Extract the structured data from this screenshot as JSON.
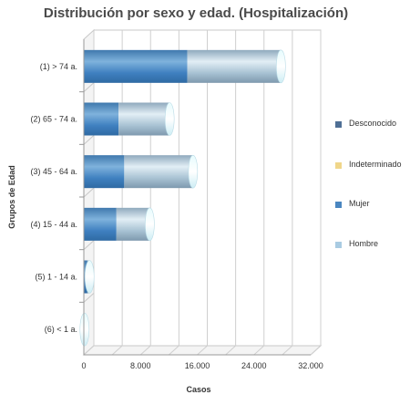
{
  "chart_data": {
    "type": "bar",
    "orientation": "horizontal",
    "stacked": true,
    "style": "3d-cylinder",
    "title": "Distribución por sexo y edad. (Hospitalización)",
    "xlabel": "Casos",
    "ylabel": "Grupos de Edad",
    "categories": [
      "(1) > 74 a.",
      "(2) 65 - 74 a.",
      "(3) 45 - 64 a.",
      "(4) 15 - 44 a.",
      "(5) 1 - 14 a.",
      "(6) < 1 a."
    ],
    "series": [
      {
        "name": "Desconocido",
        "color": "#4f6f95",
        "values": [
          0,
          0,
          0,
          0,
          0,
          0
        ]
      },
      {
        "name": "Indeterminado",
        "color": "#f0d68a",
        "values": [
          0,
          0,
          0,
          0,
          0,
          0
        ]
      },
      {
        "name": "Mujer",
        "color": "#4a86c0",
        "values": [
          14600,
          4900,
          5700,
          4600,
          500,
          0
        ]
      },
      {
        "name": "Hombre",
        "color": "#a9cbe2",
        "values": [
          13200,
          7200,
          9700,
          4700,
          300,
          100
        ]
      }
    ],
    "xlim": [
      0,
      32000
    ],
    "xticks": [
      "0",
      "8.000",
      "16.000",
      "24.000",
      "32.000"
    ],
    "xtick_values": [
      0,
      8000,
      16000,
      24000,
      32000
    ],
    "grid": true,
    "legend": "right"
  }
}
